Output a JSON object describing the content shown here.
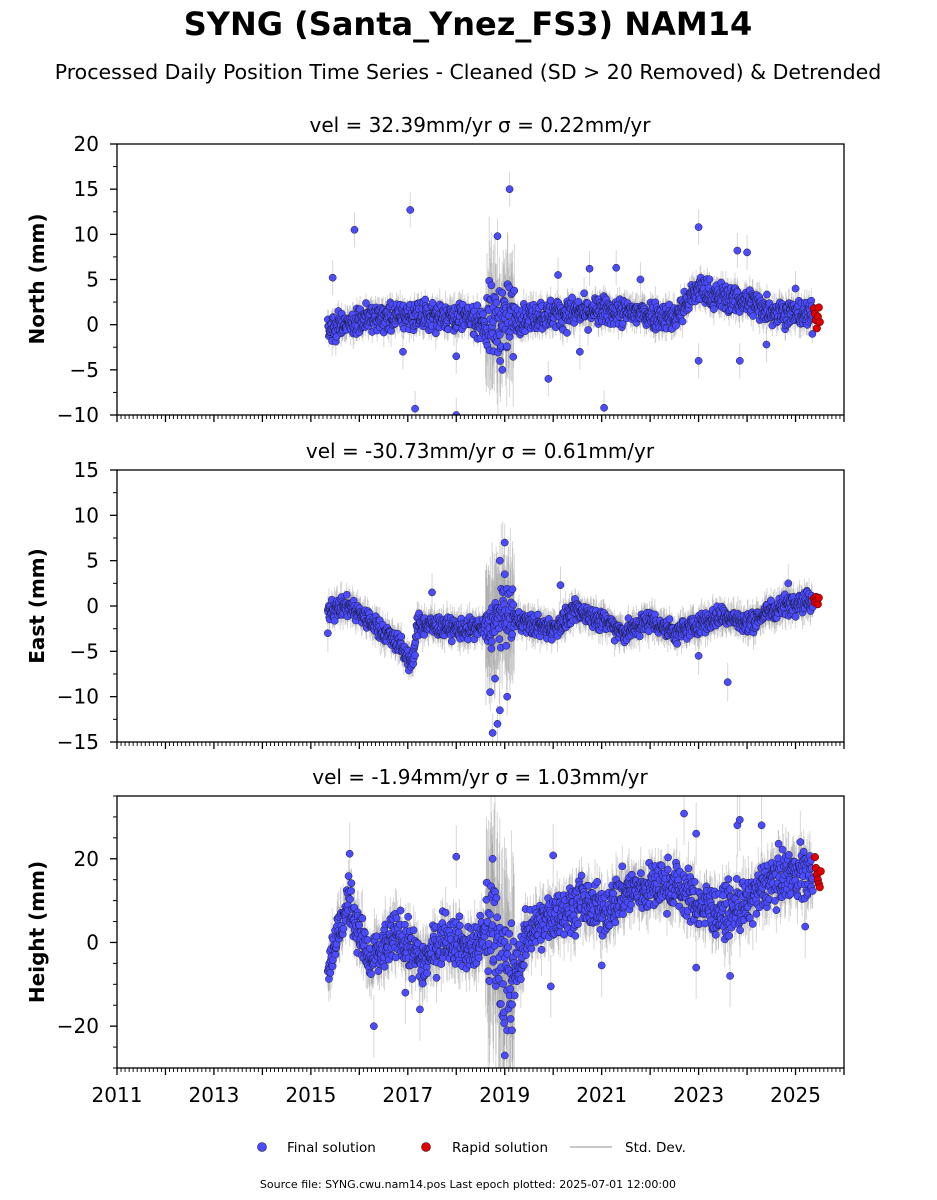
{
  "chart_data": {
    "type": "scatter",
    "title": "SYNG (Santa_Ynez_FS3) NAM14",
    "subtitle": "Processed Daily Position Time Series - Cleaned (SD > 20 Removed) & Detrended",
    "x_ticks": [
      "2011",
      "2013",
      "2015",
      "2017",
      "2019",
      "2021",
      "2023",
      "2025"
    ],
    "xlim": [
      2011,
      2026
    ],
    "legend": {
      "placement": "bottom-center",
      "entries": [
        {
          "label": "Final solution",
          "marker": "dot",
          "color": "#4b4bff"
        },
        {
          "label": "Rapid solution",
          "marker": "dot",
          "color": "#e00000"
        },
        {
          "label": "Std. Dev.",
          "marker": "line",
          "color": "#c8c8c8"
        }
      ]
    },
    "footer": "Source file: SYNG.cwu.nam14.pos  Last epoch plotted: 2025-07-01 12:00:00",
    "colors": {
      "final": "#4b4bff",
      "rapid": "#e00000",
      "errorbar": "#8c8c8c"
    },
    "panels": [
      {
        "name": "north",
        "ylabel": "North (mm)",
        "title": "vel = 32.39mm/yr   σ = 0.22mm/yr",
        "ylim": [
          -10,
          20
        ],
        "yticks": [
          "−10",
          "−5",
          "0",
          "5",
          "10",
          "15",
          "20"
        ],
        "ytick_values": [
          -10,
          -5,
          0,
          5,
          10,
          15,
          20
        ],
        "trend": [
          [
            2015.35,
            -0.5
          ],
          [
            2016.0,
            0.6
          ],
          [
            2017.0,
            1.0
          ],
          [
            2018.0,
            1.0
          ],
          [
            2018.6,
            0.2
          ],
          [
            2019.0,
            0.5
          ],
          [
            2020.0,
            1.2
          ],
          [
            2021.0,
            1.5
          ],
          [
            2022.0,
            1.2
          ],
          [
            2022.5,
            0.8
          ],
          [
            2023.0,
            4.0
          ],
          [
            2023.3,
            3.2
          ],
          [
            2024.0,
            2.6
          ],
          [
            2024.5,
            1.6
          ],
          [
            2025.0,
            1.2
          ],
          [
            2025.4,
            1.0
          ]
        ],
        "noise": 1.1,
        "outliers": [
          [
            2015.9,
            10.5
          ],
          [
            2017.05,
            12.7
          ],
          [
            2017.15,
            -9.3
          ],
          [
            2018.0,
            -10.0
          ],
          [
            2015.45,
            5.2
          ],
          [
            2018.85,
            9.8
          ],
          [
            2019.1,
            15.0
          ],
          [
            2018.95,
            -5.0
          ],
          [
            2019.9,
            -6.0
          ],
          [
            2020.1,
            5.5
          ],
          [
            2020.55,
            -3.0
          ],
          [
            2020.75,
            6.2
          ],
          [
            2021.05,
            -9.2
          ],
          [
            2021.3,
            6.3
          ],
          [
            2021.8,
            5.0
          ],
          [
            2023.0,
            10.8
          ],
          [
            2023.8,
            8.2
          ],
          [
            2024.0,
            8.0
          ],
          [
            2023.85,
            -4.0
          ],
          [
            2024.4,
            -2.2
          ],
          [
            2023.0,
            -4.0
          ],
          [
            2025.0,
            4.0
          ],
          [
            2018.0,
            -3.5
          ],
          [
            2016.9,
            -3.0
          ]
        ],
        "rapid": [
          [
            2025.38,
            1.8
          ],
          [
            2025.4,
            1.2
          ],
          [
            2025.42,
            0.5
          ],
          [
            2025.44,
            -0.4
          ],
          [
            2025.46,
            0.9
          ],
          [
            2025.48,
            1.9
          ],
          [
            2025.5,
            0.3
          ]
        ],
        "errorbar_sd": 1.3
      },
      {
        "name": "east",
        "ylabel": "East (mm)",
        "title": "vel = -30.73mm/yr   σ = 0.61mm/yr",
        "ylim": [
          -15,
          15
        ],
        "yticks": [
          "−15",
          "−10",
          "−5",
          "0",
          "5",
          "10",
          "15"
        ],
        "ytick_values": [
          -15,
          -10,
          -5,
          0,
          5,
          10,
          15
        ],
        "trend": [
          [
            2015.35,
            -0.5
          ],
          [
            2015.8,
            0.0
          ],
          [
            2016.3,
            -2.0
          ],
          [
            2016.8,
            -4.0
          ],
          [
            2017.1,
            -6.5
          ],
          [
            2017.2,
            -2.0
          ],
          [
            2018.0,
            -2.5
          ],
          [
            2018.6,
            -2.5
          ],
          [
            2019.0,
            -1.0
          ],
          [
            2019.5,
            -2.0
          ],
          [
            2020.0,
            -2.5
          ],
          [
            2020.5,
            -0.5
          ],
          [
            2021.0,
            -1.5
          ],
          [
            2021.5,
            -3.0
          ],
          [
            2022.0,
            -1.5
          ],
          [
            2022.5,
            -3.0
          ],
          [
            2023.0,
            -2.0
          ],
          [
            2023.5,
            -1.0
          ],
          [
            2024.0,
            -2.0
          ],
          [
            2024.5,
            -0.5
          ],
          [
            2025.0,
            0.5
          ],
          [
            2025.4,
            0.5
          ]
        ],
        "noise": 0.8,
        "outliers": [
          [
            2015.35,
            -3.0
          ],
          [
            2017.5,
            1.5
          ],
          [
            2018.75,
            -14.0
          ],
          [
            2018.85,
            -13.0
          ],
          [
            2018.9,
            5.0
          ],
          [
            2019.0,
            7.0
          ],
          [
            2019.05,
            -10.0
          ],
          [
            2018.8,
            -8.0
          ],
          [
            2018.7,
            -9.5
          ],
          [
            2019.0,
            3.5
          ],
          [
            2020.15,
            2.3
          ],
          [
            2023.0,
            -5.5
          ],
          [
            2023.6,
            -8.4
          ],
          [
            2024.85,
            2.5
          ],
          [
            2018.9,
            -11.5
          ]
        ],
        "rapid": [
          [
            2025.38,
            0.8
          ],
          [
            2025.4,
            0.4
          ],
          [
            2025.42,
            1.0
          ],
          [
            2025.44,
            0.6
          ],
          [
            2025.46,
            0.2
          ],
          [
            2025.48,
            0.9
          ]
        ],
        "errorbar_sd": 1.4
      },
      {
        "name": "height",
        "ylabel": "Height (mm)",
        "title": "vel = -1.94mm/yr   σ = 1.03mm/yr",
        "ylim": [
          -30,
          35
        ],
        "yticks": [
          "−20",
          "0",
          "20"
        ],
        "ytick_values": [
          -20,
          0,
          20
        ],
        "trend": [
          [
            2015.35,
            -5.0
          ],
          [
            2015.8,
            10.0
          ],
          [
            2016.2,
            -5.0
          ],
          [
            2016.8,
            2.0
          ],
          [
            2017.3,
            -5.0
          ],
          [
            2017.8,
            2.0
          ],
          [
            2018.3,
            -2.0
          ],
          [
            2018.8,
            4.0
          ],
          [
            2019.1,
            -12.0
          ],
          [
            2019.5,
            3.0
          ],
          [
            2020.0,
            6.0
          ],
          [
            2020.6,
            10.0
          ],
          [
            2021.0,
            7.0
          ],
          [
            2021.5,
            12.0
          ],
          [
            2022.0,
            13.0
          ],
          [
            2022.5,
            14.0
          ],
          [
            2023.0,
            9.0
          ],
          [
            2023.5,
            7.0
          ],
          [
            2024.0,
            9.0
          ],
          [
            2024.5,
            15.0
          ],
          [
            2025.0,
            17.0
          ],
          [
            2025.4,
            16.0
          ]
        ],
        "noise": 4.0,
        "outliers": [
          [
            2015.8,
            21.2
          ],
          [
            2016.3,
            -20.0
          ],
          [
            2018.0,
            20.5
          ],
          [
            2018.75,
            20.0
          ],
          [
            2019.0,
            -27.0
          ],
          [
            2019.05,
            -21.0
          ],
          [
            2019.15,
            -21.0
          ],
          [
            2019.95,
            -10.5
          ],
          [
            2020.0,
            20.8
          ],
          [
            2022.7,
            30.8
          ],
          [
            2022.95,
            26.0
          ],
          [
            2023.8,
            28.0
          ],
          [
            2023.85,
            29.3
          ],
          [
            2024.3,
            28.0
          ],
          [
            2022.95,
            -6.0
          ],
          [
            2023.65,
            -8.0
          ],
          [
            2021.0,
            -5.5
          ],
          [
            2025.1,
            24.0
          ],
          [
            2025.2,
            3.8
          ],
          [
            2016.95,
            -12.0
          ],
          [
            2017.25,
            -16.0
          ]
        ],
        "rapid": [
          [
            2025.4,
            20.4
          ],
          [
            2025.42,
            17.8
          ],
          [
            2025.44,
            16.2
          ],
          [
            2025.46,
            15.0
          ],
          [
            2025.48,
            14.0
          ],
          [
            2025.5,
            13.2
          ],
          [
            2025.52,
            17.0
          ]
        ],
        "errorbar_sd": 5.0
      }
    ]
  }
}
